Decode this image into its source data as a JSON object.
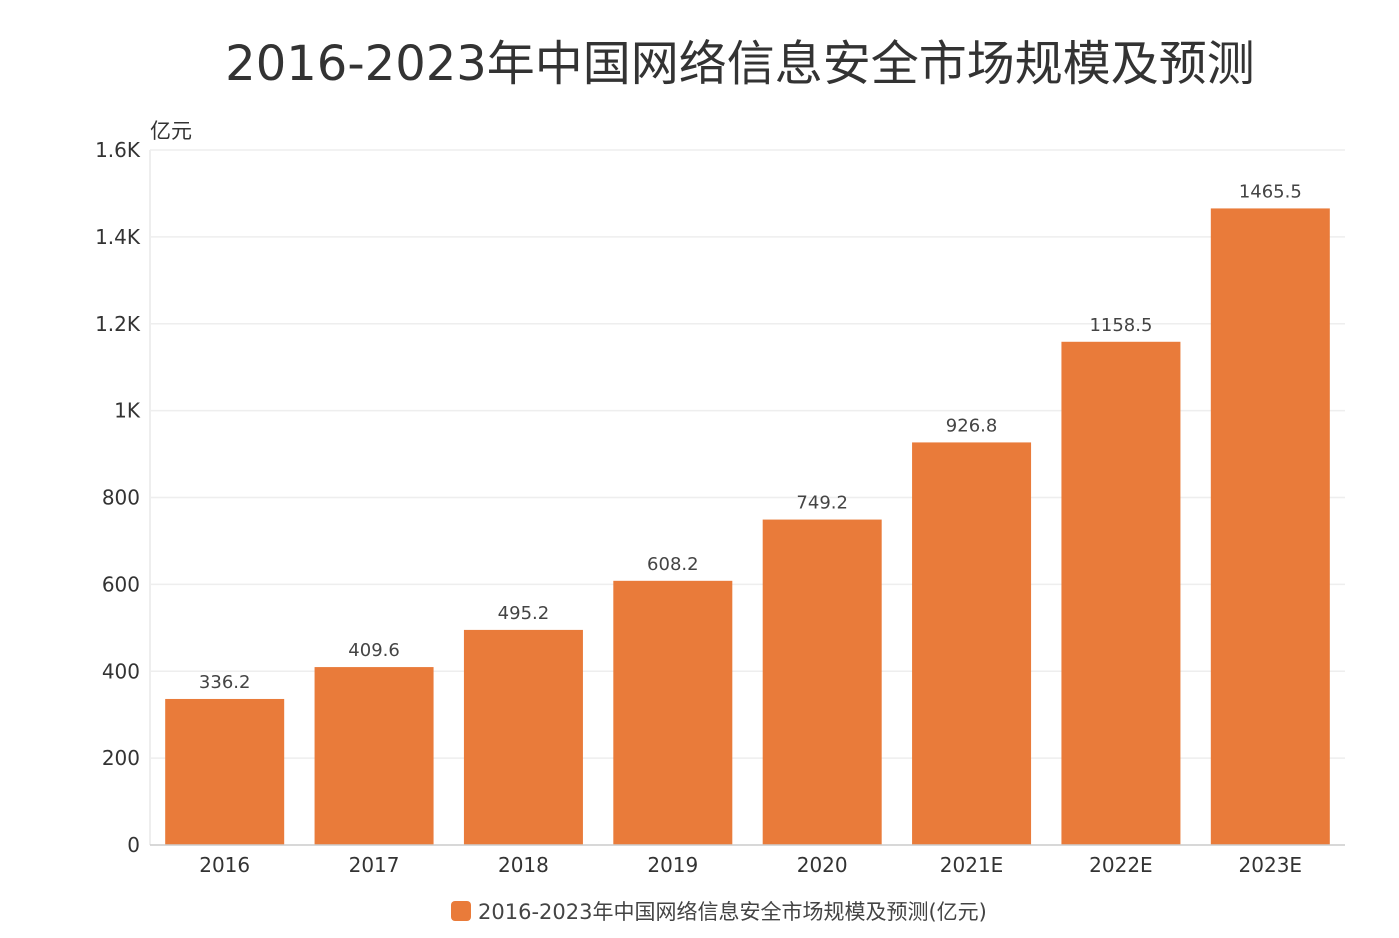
{
  "chart_data": {
    "type": "bar",
    "title": "2016-2023年中国网络信息安全市场规模及预测",
    "ylabel": "亿元",
    "xlabel": "",
    "categories": [
      "2016",
      "2017",
      "2018",
      "2019",
      "2020",
      "2021E",
      "2022E",
      "2023E"
    ],
    "series": [
      {
        "name": "2016-2023年中国网络信息安全市场规模及预测(亿元)",
        "values": [
          336.2,
          409.6,
          495.2,
          608.2,
          749.2,
          926.8,
          1158.5,
          1465.5
        ],
        "color": "#E97B3A"
      }
    ],
    "data_labels": [
      "336.2",
      "409.6",
      "495.2",
      "608.2",
      "749.2",
      "926.8",
      "1158.5",
      "1465.5"
    ],
    "ylim": [
      0,
      1600
    ],
    "yticks": [
      0,
      200,
      400,
      600,
      800,
      1000,
      1200,
      1400,
      1600
    ],
    "ytick_labels": [
      "0",
      "200",
      "400",
      "600",
      "800",
      "1K",
      "1.2K",
      "1.4K",
      "1.6K"
    ],
    "grid": true,
    "legend_position": "bottom"
  }
}
